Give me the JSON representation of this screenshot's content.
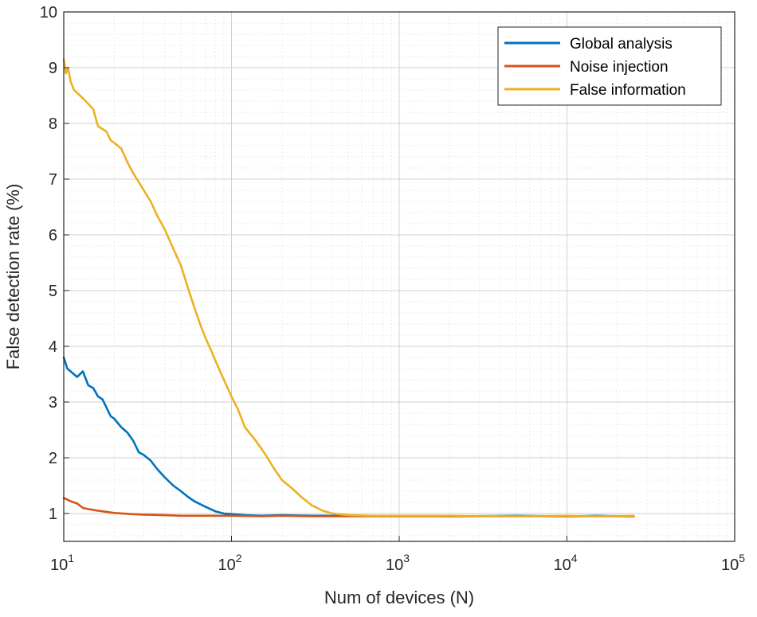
{
  "chart_data": {
    "type": "line",
    "xscale": "log",
    "xlabel": "Num of devices (N)",
    "ylabel": "False detection rate (%)",
    "xlim": [
      10,
      100000
    ],
    "ylim": [
      0.5,
      10
    ],
    "yticks": [
      1,
      2,
      3,
      4,
      5,
      6,
      7,
      8,
      9,
      10
    ],
    "xticks": [
      {
        "value": 10,
        "base": "10",
        "exp": "1"
      },
      {
        "value": 100,
        "base": "10",
        "exp": "2"
      },
      {
        "value": 1000,
        "base": "10",
        "exp": "3"
      },
      {
        "value": 10000,
        "base": "10",
        "exp": "4"
      },
      {
        "value": 100000,
        "base": "10",
        "exp": "5"
      }
    ],
    "grid": true,
    "legend_position": "top-right",
    "series": [
      {
        "name": "Global analysis",
        "color": "#0072BD",
        "points": [
          [
            10,
            3.8
          ],
          [
            10.5,
            3.6
          ],
          [
            11,
            3.55
          ],
          [
            12,
            3.45
          ],
          [
            13,
            3.55
          ],
          [
            14,
            3.3
          ],
          [
            15,
            3.25
          ],
          [
            16,
            3.1
          ],
          [
            17,
            3.05
          ],
          [
            18,
            2.9
          ],
          [
            19,
            2.75
          ],
          [
            20,
            2.7
          ],
          [
            22,
            2.55
          ],
          [
            24,
            2.45
          ],
          [
            26,
            2.3
          ],
          [
            28,
            2.1
          ],
          [
            30,
            2.05
          ],
          [
            33,
            1.95
          ],
          [
            36,
            1.8
          ],
          [
            40,
            1.65
          ],
          [
            45,
            1.5
          ],
          [
            50,
            1.4
          ],
          [
            55,
            1.3
          ],
          [
            60,
            1.22
          ],
          [
            70,
            1.12
          ],
          [
            80,
            1.04
          ],
          [
            90,
            1.0
          ],
          [
            100,
            0.99
          ],
          [
            120,
            0.97
          ],
          [
            150,
            0.96
          ],
          [
            200,
            0.97
          ],
          [
            300,
            0.96
          ],
          [
            500,
            0.96
          ],
          [
            1000,
            0.96
          ],
          [
            2000,
            0.95
          ],
          [
            5000,
            0.96
          ],
          [
            10000,
            0.95
          ],
          [
            15000,
            0.96
          ],
          [
            25000,
            0.95
          ]
        ]
      },
      {
        "name": "Noise injection",
        "color": "#D95319",
        "points": [
          [
            10,
            1.28
          ],
          [
            11,
            1.22
          ],
          [
            12,
            1.18
          ],
          [
            13,
            1.1
          ],
          [
            14,
            1.08
          ],
          [
            16,
            1.05
          ],
          [
            18,
            1.03
          ],
          [
            20,
            1.01
          ],
          [
            25,
            0.99
          ],
          [
            30,
            0.98
          ],
          [
            40,
            0.97
          ],
          [
            50,
            0.96
          ],
          [
            70,
            0.96
          ],
          [
            100,
            0.96
          ],
          [
            150,
            0.95
          ],
          [
            200,
            0.96
          ],
          [
            300,
            0.95
          ],
          [
            500,
            0.95
          ],
          [
            1000,
            0.95
          ],
          [
            2000,
            0.95
          ],
          [
            5000,
            0.95
          ],
          [
            10000,
            0.95
          ],
          [
            15000,
            0.95
          ],
          [
            25000,
            0.95
          ]
        ]
      },
      {
        "name": "False information",
        "color": "#EDB120",
        "points": [
          [
            10,
            9.15
          ],
          [
            10.3,
            8.9
          ],
          [
            10.6,
            9.0
          ],
          [
            11,
            8.75
          ],
          [
            11.5,
            8.6
          ],
          [
            12,
            8.55
          ],
          [
            13,
            8.45
          ],
          [
            14,
            8.35
          ],
          [
            15,
            8.25
          ],
          [
            16,
            7.95
          ],
          [
            17,
            7.9
          ],
          [
            18,
            7.85
          ],
          [
            19,
            7.7
          ],
          [
            20,
            7.65
          ],
          [
            22,
            7.55
          ],
          [
            24,
            7.3
          ],
          [
            26,
            7.1
          ],
          [
            28,
            6.95
          ],
          [
            30,
            6.8
          ],
          [
            33,
            6.6
          ],
          [
            36,
            6.35
          ],
          [
            40,
            6.1
          ],
          [
            45,
            5.75
          ],
          [
            50,
            5.45
          ],
          [
            55,
            5.05
          ],
          [
            60,
            4.7
          ],
          [
            65,
            4.4
          ],
          [
            70,
            4.15
          ],
          [
            75,
            3.95
          ],
          [
            80,
            3.75
          ],
          [
            90,
            3.4
          ],
          [
            100,
            3.1
          ],
          [
            110,
            2.85
          ],
          [
            120,
            2.55
          ],
          [
            140,
            2.3
          ],
          [
            160,
            2.05
          ],
          [
            180,
            1.8
          ],
          [
            200,
            1.6
          ],
          [
            230,
            1.45
          ],
          [
            260,
            1.3
          ],
          [
            300,
            1.15
          ],
          [
            350,
            1.05
          ],
          [
            400,
            1.0
          ],
          [
            500,
            0.97
          ],
          [
            700,
            0.96
          ],
          [
            1000,
            0.96
          ],
          [
            2000,
            0.96
          ],
          [
            5000,
            0.95
          ],
          [
            10000,
            0.96
          ],
          [
            15000,
            0.95
          ],
          [
            25000,
            0.96
          ]
        ]
      }
    ]
  }
}
